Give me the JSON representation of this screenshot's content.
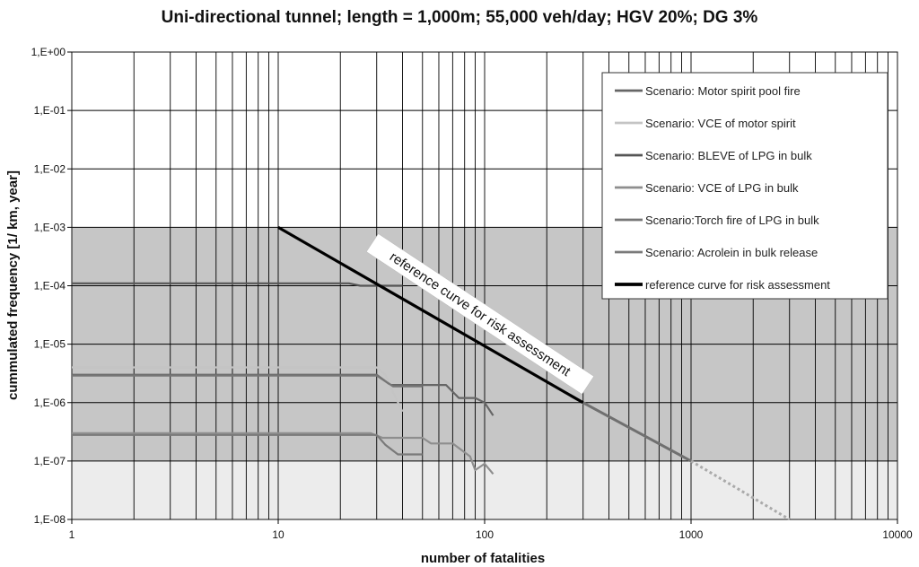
{
  "chart_data": {
    "type": "line",
    "title": "Uni-directional tunnel; length = 1,000m; 55,000 veh/day; HGV 20%; DG 3%",
    "xlabel": "number of fatalities",
    "ylabel": "cummulated frequency  [1/ km, year]",
    "x_scale": "log",
    "y_scale": "log",
    "xlim": [
      1,
      10000
    ],
    "ylim": [
      1e-08,
      1
    ],
    "x_ticks": [
      {
        "v": 1,
        "label": "1"
      },
      {
        "v": 10,
        "label": "10"
      },
      {
        "v": 100,
        "label": "100"
      },
      {
        "v": 1000,
        "label": "1000"
      },
      {
        "v": 10000,
        "label": "10000"
      }
    ],
    "y_ticks": [
      {
        "v": 1,
        "label": "1,E+00"
      },
      {
        "v": 0.1,
        "label": "1,E-01"
      },
      {
        "v": 0.01,
        "label": "1,E-02"
      },
      {
        "v": 0.001,
        "label": "1,E-03"
      },
      {
        "v": 0.0001,
        "label": "1,E-04"
      },
      {
        "v": 1e-05,
        "label": "1,E-05"
      },
      {
        "v": 1e-06,
        "label": "1,E-06"
      },
      {
        "v": 1e-07,
        "label": "1,E-07"
      },
      {
        "v": 1e-08,
        "label": "1,E-08"
      }
    ],
    "grid": true,
    "legend_position": "top-right",
    "bands": [
      {
        "y_from": 1e-07,
        "y_to": 0.001,
        "color": "#c6c6c6"
      },
      {
        "y_from": 1e-08,
        "y_to": 1e-07,
        "color": "#ececec"
      }
    ],
    "series": [
      {
        "name": "Scenario: Motor spirit pool fire",
        "color": "#666666",
        "width": 2.2,
        "points": [
          [
            1,
            3e-06
          ],
          [
            30,
            3e-06
          ],
          [
            35,
            2e-06
          ],
          [
            50,
            2e-06
          ],
          [
            65,
            2e-06
          ],
          [
            75,
            1.2e-06
          ],
          [
            90,
            1.2e-06
          ],
          [
            100,
            1e-06
          ],
          [
            110,
            6e-07
          ]
        ]
      },
      {
        "name": "Scenario: VCE of motor spirit",
        "color": "#c4c4c4",
        "width": 2.2,
        "points": [
          [
            1,
            4e-06
          ],
          [
            30,
            4e-06
          ],
          [
            33,
            3e-06
          ],
          [
            36,
            1.5e-06
          ],
          [
            40,
            7e-07
          ]
        ]
      },
      {
        "name": "Scenario: BLEVE of LPG in bulk",
        "color": "#555555",
        "width": 2.2,
        "points": [
          [
            1,
            0.00011
          ],
          [
            22,
            0.00011
          ],
          [
            25,
            0.0001
          ],
          [
            40,
            0.0001
          ]
        ]
      },
      {
        "name": "Scenario: VCE of LPG in bulk",
        "color": "#8e8e8e",
        "width": 2.2,
        "points": [
          [
            1,
            3e-07
          ],
          [
            28,
            3e-07
          ],
          [
            32,
            2.5e-07
          ],
          [
            50,
            2.5e-07
          ],
          [
            55,
            2e-07
          ],
          [
            70,
            2e-07
          ],
          [
            85,
            1.2e-07
          ],
          [
            90,
            7e-08
          ],
          [
            100,
            9e-08
          ],
          [
            110,
            6e-08
          ]
        ]
      },
      {
        "name": "Scenario:Torch fire of LPG in bulk",
        "color": "#767676",
        "width": 2.2,
        "points": [
          [
            1,
            2.9e-06
          ],
          [
            30,
            2.9e-06
          ],
          [
            36,
            1.9e-06
          ],
          [
            50,
            1.9e-06
          ]
        ]
      },
      {
        "name": "Scenario: Acrolein in bulk release",
        "color": "#7a7a7a",
        "width": 2.2,
        "points": [
          [
            1,
            2.8e-07
          ],
          [
            30,
            2.8e-07
          ],
          [
            33,
            1.9e-07
          ],
          [
            38,
            1.3e-07
          ],
          [
            50,
            1.3e-07
          ]
        ]
      },
      {
        "name": "reference curve for risk assessment",
        "color": "#000000",
        "width": 3.2,
        "points": [
          [
            10,
            0.001
          ],
          [
            300,
            1e-06
          ]
        ]
      }
    ],
    "extra_lines": [
      {
        "points": [
          [
            300,
            1e-06
          ],
          [
            1000,
            1e-07
          ]
        ],
        "color": "#707070",
        "width": 3,
        "dashed": false
      },
      {
        "points": [
          [
            1000,
            1e-07
          ],
          [
            3000,
            1e-08
          ]
        ],
        "color": "#aaaaaa",
        "width": 3,
        "dashed": true
      }
    ],
    "annotation": {
      "text": "reference curve for risk assessment"
    }
  }
}
